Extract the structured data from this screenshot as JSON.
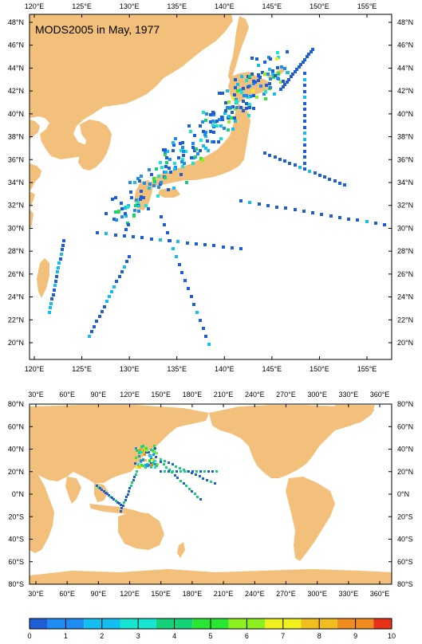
{
  "title": "MODS2005 in May, 1977",
  "colors": {
    "land": "#F2C07A",
    "sea": "#FFFFFF",
    "frame": "#000000"
  },
  "regional_map": {
    "lon_labels": [
      "120°E",
      "125°E",
      "130°E",
      "135°E",
      "140°E",
      "145°E",
      "150°E",
      "155°E"
    ],
    "lat_labels": [
      "20°N",
      "22°N",
      "24°N",
      "26°N",
      "28°N",
      "30°N",
      "32°N",
      "34°N",
      "36°N",
      "38°N",
      "40°N",
      "42°N",
      "44°N",
      "46°N",
      "48°N"
    ]
  },
  "global_map": {
    "lon_labels": [
      "30°E",
      "60°E",
      "90°E",
      "120°E",
      "150°E",
      "180°E",
      "210°E",
      "240°E",
      "270°E",
      "300°E",
      "330°E",
      "360°E"
    ],
    "lat_labels": [
      "80°S",
      "60°S",
      "40°S",
      "20°S",
      "0°N",
      "20°N",
      "40°N",
      "60°N",
      "80°N"
    ]
  },
  "colorbar": {
    "ticks": [
      "0",
      "1",
      "2",
      "3",
      "4",
      "5",
      "6",
      "7",
      "8",
      "9",
      "10"
    ],
    "colors": [
      "#1E5FD8",
      "#1E8CF0",
      "#14BEF0",
      "#14E6D2",
      "#14D278",
      "#28E632",
      "#8CF01E",
      "#F0F01E",
      "#F0BE1E",
      "#F08C1E",
      "#E63214"
    ]
  }
}
